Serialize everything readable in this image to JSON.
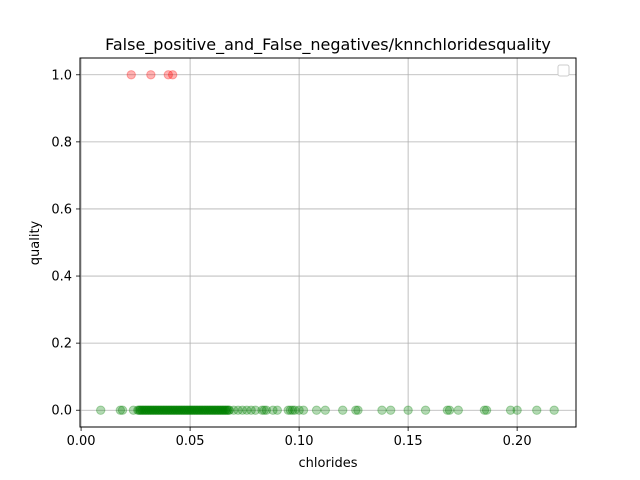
{
  "chart_data": {
    "type": "scatter",
    "title": "False_positive_and_False_negatives/knnchloridesquality",
    "xlabel": "chlorides",
    "ylabel": "quality",
    "xlim": [
      -0.0005,
      0.227
    ],
    "ylim": [
      -0.05,
      1.05
    ],
    "x_ticks": [
      0.0,
      0.05,
      0.1,
      0.15,
      0.2
    ],
    "x_tick_labels": [
      "0.00",
      "0.05",
      "0.10",
      "0.15",
      "0.20"
    ],
    "y_ticks": [
      0.0,
      0.2,
      0.4,
      0.6,
      0.8,
      1.0
    ],
    "y_tick_labels": [
      "0.0",
      "0.2",
      "0.4",
      "0.6",
      "0.8",
      "1.0"
    ],
    "grid": true,
    "legend": {
      "placement": "upper-right",
      "entries": []
    },
    "series": [
      {
        "color": "#ff0000",
        "alpha": 0.3,
        "x": [
          0.023,
          0.032,
          0.04,
          0.042
        ],
        "y": [
          1,
          1,
          1,
          1
        ]
      },
      {
        "color": "#008000",
        "alpha": 0.3,
        "x": [
          0.009,
          0.018,
          0.019,
          0.024,
          0.026,
          0.027,
          0.028,
          0.029,
          0.03,
          0.031,
          0.032,
          0.033,
          0.034,
          0.035,
          0.036,
          0.037,
          0.038,
          0.039,
          0.04,
          0.041,
          0.042,
          0.043,
          0.044,
          0.045,
          0.046,
          0.047,
          0.048,
          0.049,
          0.05,
          0.051,
          0.052,
          0.053,
          0.054,
          0.055,
          0.056,
          0.057,
          0.058,
          0.059,
          0.06,
          0.061,
          0.062,
          0.063,
          0.064,
          0.065,
          0.066,
          0.067,
          0.068,
          0.07,
          0.072,
          0.074,
          0.076,
          0.078,
          0.08,
          0.083,
          0.084,
          0.085,
          0.088,
          0.09,
          0.095,
          0.096,
          0.097,
          0.098,
          0.1,
          0.102,
          0.108,
          0.112,
          0.12,
          0.126,
          0.127,
          0.138,
          0.142,
          0.15,
          0.158,
          0.168,
          0.169,
          0.173,
          0.185,
          0.186,
          0.197,
          0.2,
          0.209,
          0.217
        ],
        "y": [
          0,
          0,
          0,
          0,
          0,
          0,
          0,
          0,
          0,
          0,
          0,
          0,
          0,
          0,
          0,
          0,
          0,
          0,
          0,
          0,
          0,
          0,
          0,
          0,
          0,
          0,
          0,
          0,
          0,
          0,
          0,
          0,
          0,
          0,
          0,
          0,
          0,
          0,
          0,
          0,
          0,
          0,
          0,
          0,
          0,
          0,
          0,
          0,
          0,
          0,
          0,
          0,
          0,
          0,
          0,
          0,
          0,
          0,
          0,
          0,
          0,
          0,
          0,
          0,
          0,
          0,
          0,
          0,
          0,
          0,
          0,
          0,
          0,
          0,
          0,
          0,
          0,
          0,
          0,
          0,
          0,
          0
        ]
      }
    ]
  }
}
